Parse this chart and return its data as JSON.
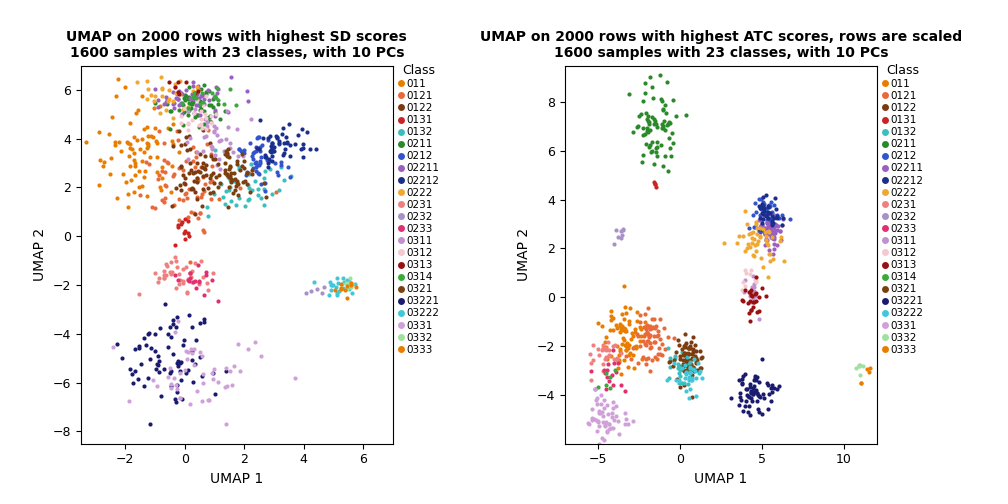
{
  "title1": "UMAP on 2000 rows with highest SD scores\n1600 samples with 23 classes, with 10 PCs",
  "title2": "UMAP on 2000 rows with highest ATC scores, rows are scaled\n1600 samples with 23 classes, with 10 PCs",
  "xlabel": "UMAP 1",
  "ylabel": "UMAP 2",
  "legend_title": "Class",
  "classes": [
    "011",
    "0121",
    "0122",
    "0131",
    "0132",
    "0211",
    "0212",
    "02211",
    "02212",
    "0222",
    "0231",
    "0232",
    "0233",
    "0311",
    "0312",
    "0313",
    "0314",
    "0321",
    "03221",
    "03222",
    "0331",
    "0332",
    "0333"
  ],
  "colors": [
    "#E87D00",
    "#E8693A",
    "#7B3A10",
    "#CC2222",
    "#3ABFBF",
    "#2A8A2A",
    "#3355CC",
    "#9B5FC0",
    "#1A2E8B",
    "#F0A830",
    "#F08080",
    "#A890C8",
    "#E03070",
    "#C090D0",
    "#F5C8D0",
    "#991010",
    "#3AAA3A",
    "#7B4010",
    "#1A1A6E",
    "#40C8D8",
    "#D0A0D8",
    "#A0E0A0",
    "#E87D00"
  ],
  "plot1_xlim": [
    -3.5,
    7.0
  ],
  "plot1_ylim": [
    -8.5,
    7.0
  ],
  "plot1_xticks": [
    -2,
    0,
    2,
    4,
    6
  ],
  "plot1_yticks": [
    -8,
    -6,
    -4,
    -2,
    0,
    2,
    4,
    6
  ],
  "plot2_xlim": [
    -7.0,
    12.0
  ],
  "plot2_ylim": [
    -6.0,
    9.5
  ],
  "plot2_xticks": [
    -5,
    0,
    5,
    10
  ],
  "plot2_yticks": [
    -4,
    -2,
    0,
    2,
    4,
    6,
    8
  ],
  "pt_size": 9,
  "plot1_clusters": {
    "011": [
      -1.5,
      3.5,
      80,
      0.7,
      1.2
    ],
    "0121": [
      0.0,
      2.2,
      70,
      0.8,
      1.0
    ],
    "0122": [
      0.3,
      2.6,
      50,
      0.5,
      0.8
    ],
    "0131": [
      0.0,
      0.1,
      12,
      0.2,
      0.3
    ],
    "0132": [
      2.2,
      2.0,
      40,
      0.7,
      0.5
    ],
    "0211": [
      0.5,
      5.3,
      55,
      0.6,
      0.4
    ],
    "0212": [
      2.5,
      3.2,
      50,
      0.4,
      0.5
    ],
    "02211": [
      0.3,
      5.6,
      55,
      0.7,
      0.4
    ],
    "02212": [
      3.2,
      3.5,
      50,
      0.5,
      0.5
    ],
    "0222": [
      -0.5,
      5.8,
      28,
      0.5,
      0.4
    ],
    "0231": [
      -0.3,
      -1.7,
      40,
      0.6,
      0.4
    ],
    "0232": [
      4.5,
      -2.2,
      5,
      0.15,
      0.1
    ],
    "0233": [
      0.3,
      -1.8,
      18,
      0.4,
      0.3
    ],
    "0311": [
      0.8,
      4.0,
      38,
      0.6,
      0.5
    ],
    "0312": [
      0.5,
      4.9,
      22,
      0.4,
      0.4
    ],
    "0313": [
      -0.2,
      6.0,
      8,
      0.25,
      0.2
    ],
    "0314": [
      0.9,
      5.7,
      16,
      0.5,
      0.3
    ],
    "0321": [
      1.5,
      2.5,
      60,
      0.5,
      0.5
    ],
    "03221": [
      -0.7,
      -5.1,
      75,
      0.8,
      0.9
    ],
    "03222": [
      5.2,
      -2.0,
      22,
      0.35,
      0.25
    ],
    "0331": [
      0.5,
      -5.8,
      50,
      1.0,
      0.9
    ],
    "0332": [
      5.5,
      -2.0,
      7,
      0.15,
      0.15
    ],
    "0333": [
      5.3,
      -2.1,
      10,
      0.25,
      0.2
    ]
  },
  "plot2_clusters": {
    "011": [
      -3.5,
      -1.5,
      75,
      0.65,
      0.7
    ],
    "0121": [
      -1.8,
      -1.8,
      65,
      0.5,
      0.55
    ],
    "0122": [
      0.5,
      -2.5,
      45,
      0.5,
      0.55
    ],
    "0131": [
      -1.5,
      4.6,
      4,
      0.1,
      0.1
    ],
    "0132": [
      0.2,
      -2.8,
      28,
      0.5,
      0.5
    ],
    "0211": [
      -1.5,
      7.0,
      75,
      0.75,
      0.85
    ],
    "0212": [
      5.2,
      3.2,
      48,
      0.4,
      0.45
    ],
    "02211": [
      5.5,
      2.8,
      50,
      0.4,
      0.4
    ],
    "02212": [
      5.3,
      3.5,
      38,
      0.38,
      0.38
    ],
    "0222": [
      4.8,
      2.2,
      48,
      0.55,
      0.5
    ],
    "0231": [
      -4.5,
      -2.5,
      26,
      0.38,
      0.38
    ],
    "0232": [
      -3.5,
      2.4,
      8,
      0.18,
      0.28
    ],
    "0233": [
      -4.2,
      -3.2,
      16,
      0.38,
      0.38
    ],
    "0311": [
      4.5,
      0.3,
      14,
      0.38,
      0.38
    ],
    "0312": [
      4.2,
      0.8,
      10,
      0.28,
      0.28
    ],
    "0313": [
      4.5,
      -0.2,
      26,
      0.38,
      0.38
    ],
    "0314": [
      -4.8,
      -3.5,
      7,
      0.28,
      0.28
    ],
    "0321": [
      0.5,
      -2.5,
      32,
      0.55,
      0.5
    ],
    "03221": [
      4.5,
      -3.8,
      65,
      0.65,
      0.55
    ],
    "03222": [
      0.5,
      -3.2,
      32,
      0.48,
      0.38
    ],
    "0331": [
      -4.5,
      -4.8,
      55,
      0.65,
      0.5
    ],
    "0332": [
      11.0,
      -3.0,
      7,
      0.18,
      0.18
    ],
    "0333": [
      11.3,
      -3.2,
      5,
      0.18,
      0.18
    ]
  }
}
